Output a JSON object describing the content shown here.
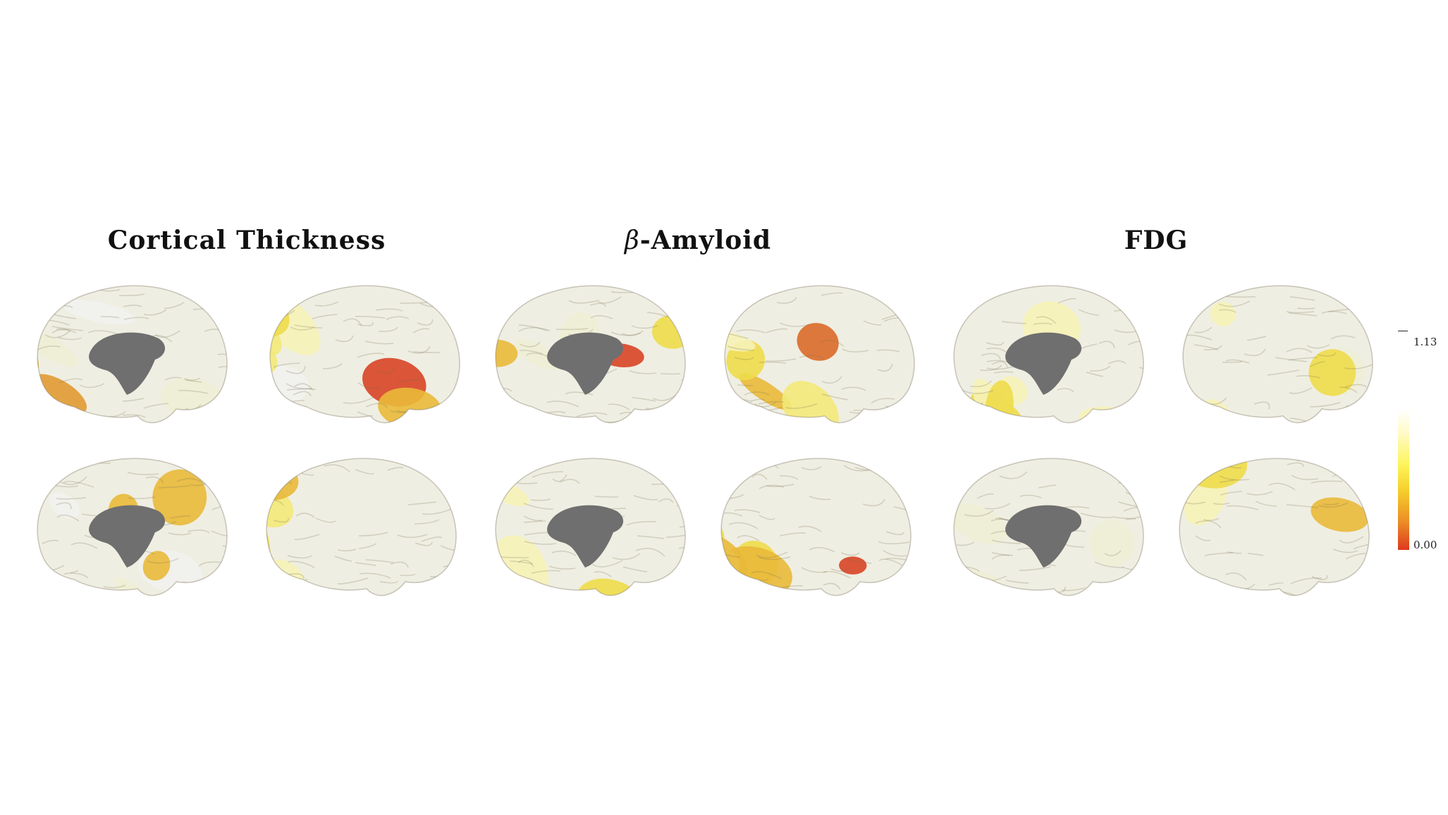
{
  "titles": {
    "cortical_thickness": "Cortical Thickness",
    "amyloid_symbol": "β",
    "amyloid_rest": "-Amyloid",
    "fdg": "FDG"
  },
  "colorbar": {
    "max_label": "1.13",
    "min_label": "0.00",
    "colors": [
      "#ffffff",
      "#fffbd0",
      "#fdf45a",
      "#f5cf2c",
      "#eb8d26",
      "#dd3a1e"
    ]
  },
  "brain_views": [
    {
      "panel": "cortical_thickness",
      "view": "medial",
      "row": 1,
      "col": 1
    },
    {
      "panel": "cortical_thickness",
      "view": "lateral",
      "row": 1,
      "col": 2
    },
    {
      "panel": "cortical_thickness",
      "view": "medial",
      "row": 2,
      "col": 1
    },
    {
      "panel": "cortical_thickness",
      "view": "lateral",
      "row": 2,
      "col": 2
    },
    {
      "panel": "amyloid",
      "view": "medial",
      "row": 1,
      "col": 1
    },
    {
      "panel": "amyloid",
      "view": "lateral",
      "row": 1,
      "col": 2
    },
    {
      "panel": "amyloid",
      "view": "medial",
      "row": 2,
      "col": 1
    },
    {
      "panel": "amyloid",
      "view": "lateral",
      "row": 2,
      "col": 2
    },
    {
      "panel": "fdg",
      "view": "medial",
      "row": 1,
      "col": 1
    },
    {
      "panel": "fdg",
      "view": "lateral",
      "row": 1,
      "col": 2
    },
    {
      "panel": "fdg",
      "view": "medial",
      "row": 2,
      "col": 1
    },
    {
      "panel": "fdg",
      "view": "lateral",
      "row": 2,
      "col": 2
    }
  ]
}
